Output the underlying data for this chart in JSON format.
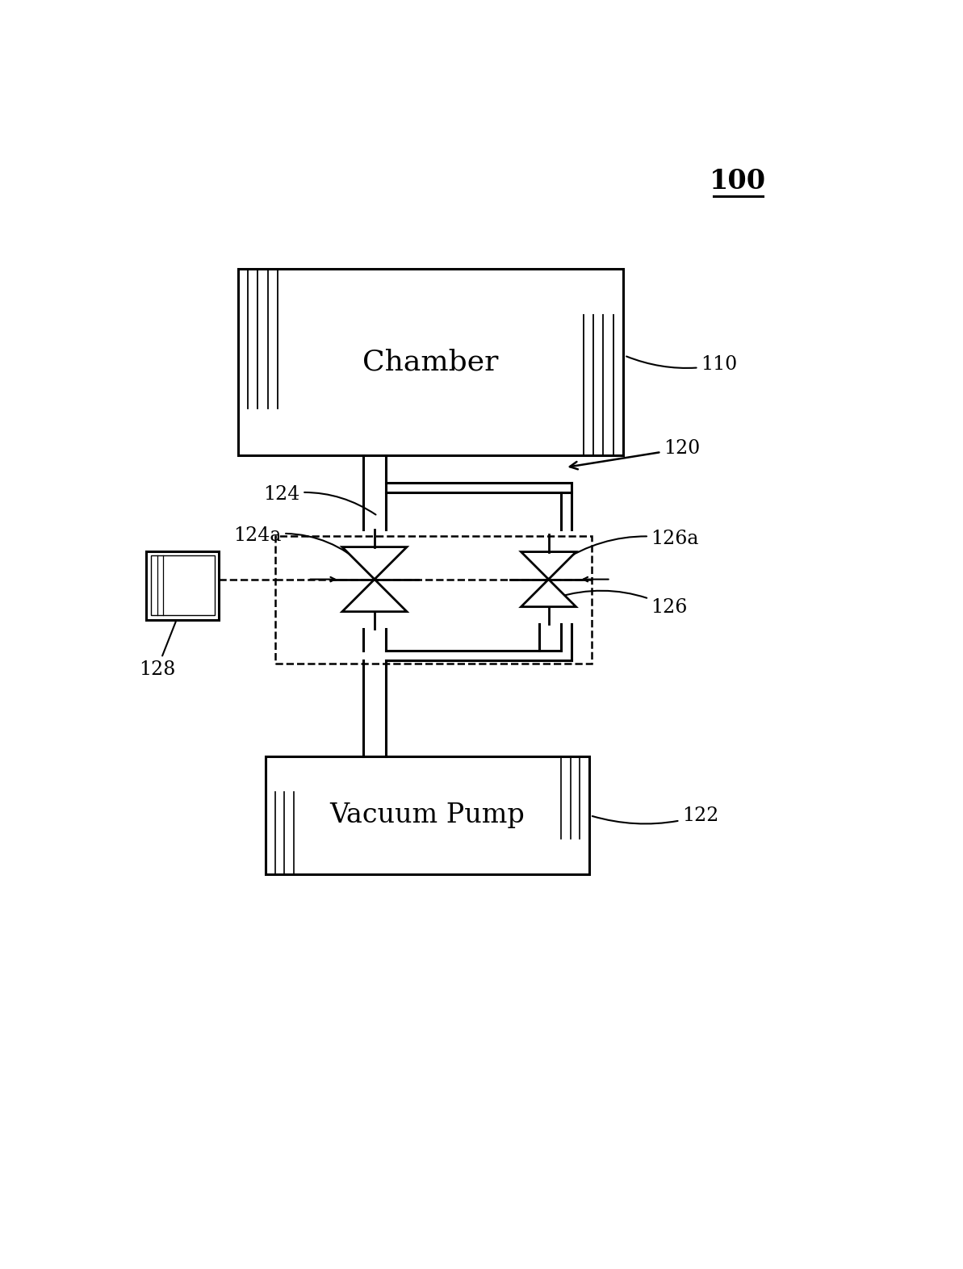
{
  "title": "100",
  "bg_color": "#ffffff",
  "chamber_label": "Chamber",
  "chamber_ref": "110",
  "pump_label": "Vacuum Pump",
  "pump_ref": "122",
  "controller_ref": "128",
  "valve124_ref": "124",
  "valve124a_ref": "124a",
  "valve126_ref": "126",
  "valve126a_ref": "126a",
  "bypass_ref": "120",
  "font_size_label": 24,
  "font_size_ref": 17
}
